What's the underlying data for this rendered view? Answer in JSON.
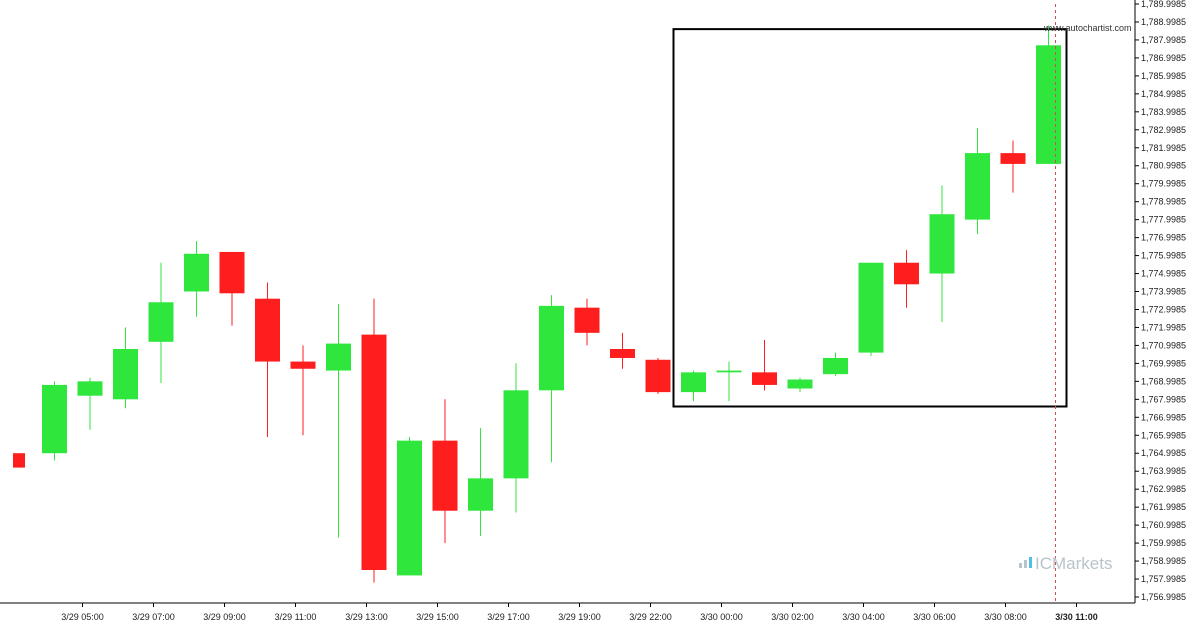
{
  "chart_data": {
    "type": "candlestick",
    "y_ticks": [
      "1,789.9985",
      "1,788.9985",
      "1,787.9985",
      "1,786.9985",
      "1,785.9985",
      "1,784.9985",
      "1,783.9985",
      "1,782.9985",
      "1,781.9985",
      "1,780.9985",
      "1,779.9985",
      "1,778.9985",
      "1,777.9985",
      "1,776.9985",
      "1,775.9985",
      "1,774.9985",
      "1,773.9985",
      "1,772.9985",
      "1,771.9985",
      "1,770.9985",
      "1,769.9985",
      "1,768.9985",
      "1,767.9985",
      "1,766.9985",
      "1,765.9985",
      "1,764.9985",
      "1,763.9985",
      "1,762.9985",
      "1,761.9985",
      "1,760.9985",
      "1,759.9985",
      "1,758.9985",
      "1,757.9985",
      "1,756.9985"
    ],
    "ylim": [
      1756.5,
      1790.2
    ],
    "x_ticks": [
      {
        "label": "3/29 05:00",
        "index": 1
      },
      {
        "label": "3/29 07:00",
        "index": 3
      },
      {
        "label": "3/29 09:00",
        "index": 5
      },
      {
        "label": "3/29 11:00",
        "index": 7
      },
      {
        "label": "3/29 13:00",
        "index": 9
      },
      {
        "label": "3/29 15:00",
        "index": 11
      },
      {
        "label": "3/29 17:00",
        "index": 13
      },
      {
        "label": "3/29 19:00",
        "index": 15
      },
      {
        "label": "3/29 22:00",
        "index": 17
      },
      {
        "label": "3/30 00:00",
        "index": 19
      },
      {
        "label": "3/30 02:00",
        "index": 21
      },
      {
        "label": "3/30 04:00",
        "index": 23
      },
      {
        "label": "3/30 06:00",
        "index": 25
      },
      {
        "label": "3/30 08:00",
        "index": 27
      },
      {
        "label": "3/30 11:00",
        "index": 29
      }
    ],
    "candles": [
      {
        "open": 1765.0,
        "high": 1765.0,
        "low": 1764.2,
        "close": 1764.2
      },
      {
        "open": 1765.0,
        "high": 1769.0,
        "low": 1764.6,
        "close": 1768.8
      },
      {
        "open": 1768.2,
        "high": 1769.2,
        "low": 1766.3,
        "close": 1769.0
      },
      {
        "open": 1768.0,
        "high": 1772.0,
        "low": 1767.5,
        "close": 1770.8
      },
      {
        "open": 1771.2,
        "high": 1775.6,
        "low": 1768.9,
        "close": 1773.4
      },
      {
        "open": 1774.0,
        "high": 1776.8,
        "low": 1772.6,
        "close": 1776.1
      },
      {
        "open": 1776.2,
        "high": 1776.2,
        "low": 1772.1,
        "close": 1773.9
      },
      {
        "open": 1773.6,
        "high": 1774.5,
        "low": 1765.9,
        "close": 1770.1
      },
      {
        "open": 1770.1,
        "high": 1771.0,
        "low": 1766.0,
        "close": 1769.7
      },
      {
        "open": 1769.6,
        "high": 1773.3,
        "low": 1760.3,
        "close": 1771.1
      },
      {
        "open": 1771.6,
        "high": 1773.6,
        "low": 1757.8,
        "close": 1758.5
      },
      {
        "open": 1758.2,
        "high": 1765.9,
        "low": 1758.2,
        "close": 1765.7
      },
      {
        "open": 1765.7,
        "high": 1768.0,
        "low": 1760.0,
        "close": 1761.8
      },
      {
        "open": 1761.8,
        "high": 1766.4,
        "low": 1760.4,
        "close": 1763.6
      },
      {
        "open": 1763.6,
        "high": 1770.0,
        "low": 1761.7,
        "close": 1768.5
      },
      {
        "open": 1768.5,
        "high": 1773.8,
        "low": 1764.5,
        "close": 1773.2
      },
      {
        "open": 1773.1,
        "high": 1773.6,
        "low": 1771.0,
        "close": 1771.7
      },
      {
        "open": 1770.8,
        "high": 1771.7,
        "low": 1769.7,
        "close": 1770.3
      },
      {
        "open": 1770.2,
        "high": 1770.3,
        "low": 1768.3,
        "close": 1768.4
      },
      {
        "open": 1768.4,
        "high": 1769.6,
        "low": 1767.9,
        "close": 1769.5
      },
      {
        "open": 1769.5,
        "high": 1770.1,
        "low": 1767.9,
        "close": 1769.6
      },
      {
        "open": 1769.5,
        "high": 1771.3,
        "low": 1768.5,
        "close": 1768.8
      },
      {
        "open": 1768.6,
        "high": 1769.2,
        "low": 1768.4,
        "close": 1769.1
      },
      {
        "open": 1769.4,
        "high": 1770.6,
        "low": 1769.3,
        "close": 1770.3
      },
      {
        "open": 1770.6,
        "high": 1775.6,
        "low": 1770.4,
        "close": 1775.6
      },
      {
        "open": 1775.6,
        "high": 1776.3,
        "low": 1773.1,
        "close": 1774.4
      },
      {
        "open": 1775.0,
        "high": 1779.9,
        "low": 1772.3,
        "close": 1778.3
      },
      {
        "open": 1778.0,
        "high": 1783.1,
        "low": 1777.2,
        "close": 1781.7
      },
      {
        "open": 1781.7,
        "high": 1782.4,
        "low": 1779.5,
        "close": 1781.1
      },
      {
        "open": 1781.1,
        "high": 1788.8,
        "low": 1781.1,
        "close": 1787.7
      }
    ],
    "highlight_box": {
      "start_index": 19,
      "end_index": 29,
      "low": 1767.6,
      "high": 1788.6
    },
    "current_index": 29,
    "watermark": "www.autochartist.com",
    "brand": "ICMarkets",
    "colors": {
      "up": "#2ee63c",
      "down": "#ff1e1e",
      "box": "#000000",
      "grid": "#d8d8d8",
      "cursor": "#d05050",
      "brand_accent": "#4cc0e8"
    }
  }
}
